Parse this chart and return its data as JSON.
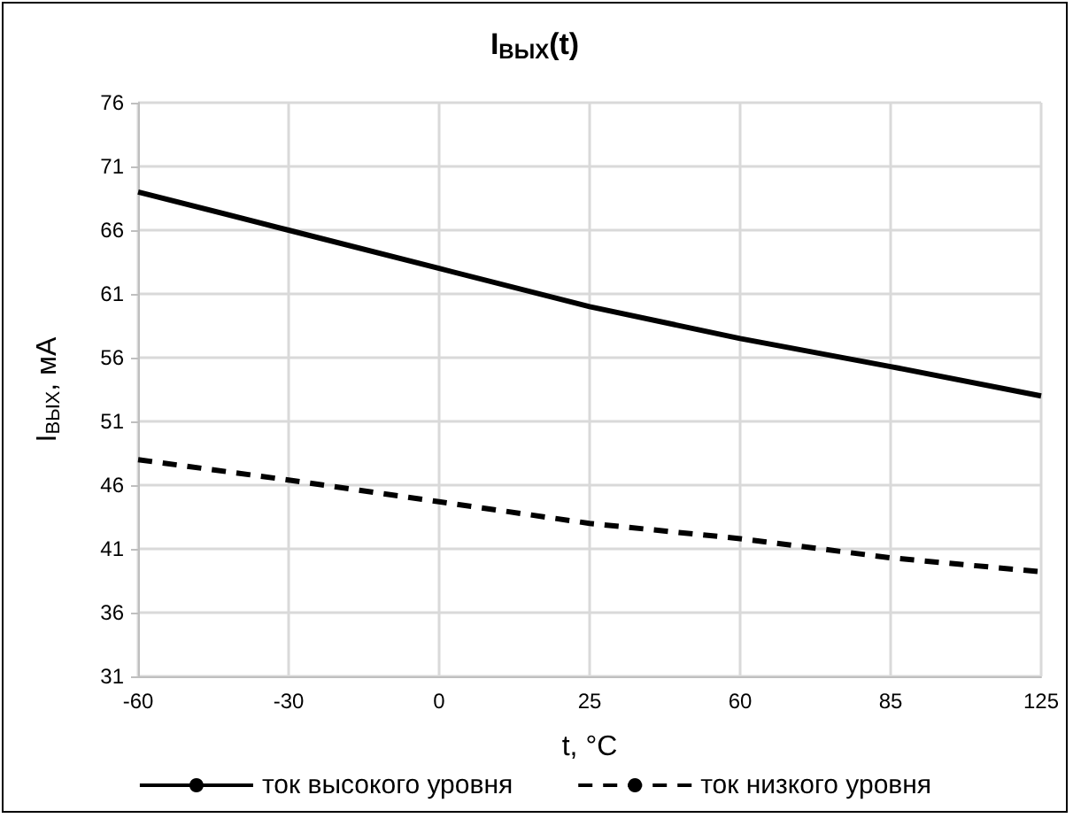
{
  "chart_data": {
    "type": "line",
    "title": "I$_{ВЫХ}$(t)",
    "xlabel": "t, °C",
    "ylabel": "I$_{ВЫХ}$, мА",
    "categories": [
      "-60",
      "-30",
      "0",
      "25",
      "60",
      "85",
      "125"
    ],
    "series": [
      {
        "name": "ток высокого уровня",
        "color": "#000000",
        "line_style": "solid",
        "values": [
          69,
          66,
          63,
          60,
          57.5,
          55.3,
          53
        ]
      },
      {
        "name": "ток низкого уровня",
        "color": "#000000",
        "line_style": "dashed",
        "values": [
          48,
          46.4,
          44.7,
          43,
          41.8,
          40.3,
          39.2
        ]
      }
    ],
    "ylim": [
      31,
      76
    ],
    "yticks": [
      31,
      36,
      41,
      46,
      51,
      56,
      61,
      66,
      71,
      76
    ],
    "grid": true,
    "legend": "bottom",
    "marker": "none"
  }
}
